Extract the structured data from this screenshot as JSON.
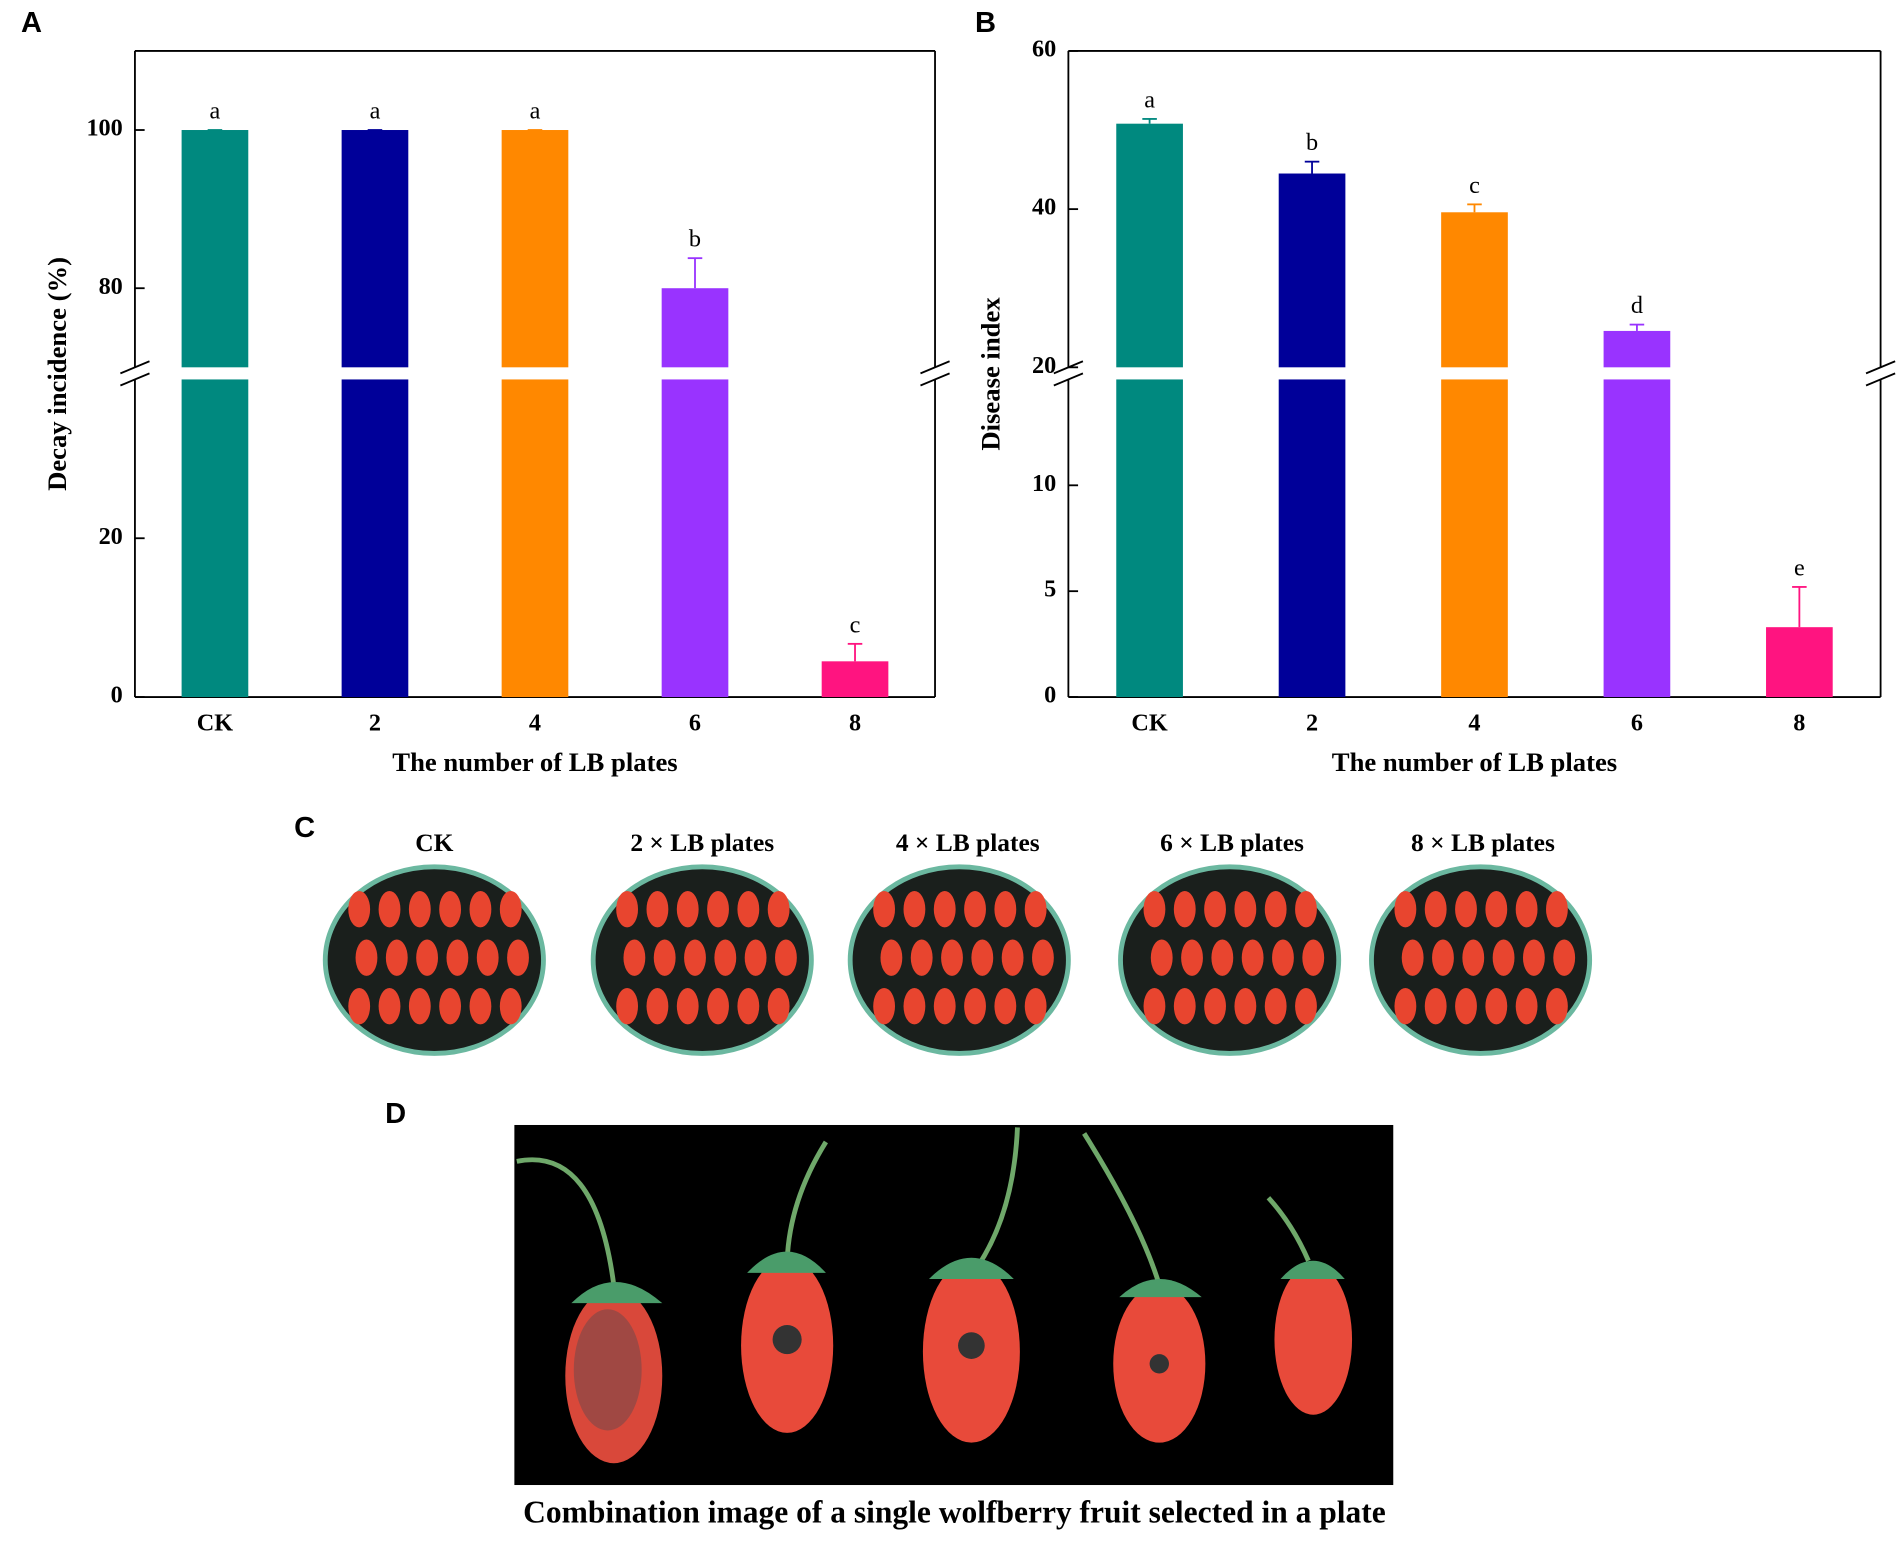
{
  "chart_data": [
    {
      "type": "bar",
      "panel_label": "A",
      "y_label": "Decay incidence (%)",
      "x_label": "The number of LB plates",
      "categories": [
        "CK",
        "2",
        "4",
        "6",
        "8"
      ],
      "values": [
        100,
        100,
        100,
        80,
        4.5
      ],
      "errors": [
        0,
        0,
        0,
        3.8,
        2.2
      ],
      "annotations": [
        "a",
        "a",
        "a",
        "b",
        "c"
      ],
      "colors": [
        "#00897f",
        "#000099",
        "#ff8800",
        "#9933ff",
        "#ff1480"
      ],
      "axis_break": true,
      "ylim": [
        0,
        40
      ],
      "yticks": [
        0,
        20
      ],
      "ylim_upper": [
        70,
        110
      ],
      "yticks_upper": [
        80,
        100
      ]
    },
    {
      "type": "bar",
      "panel_label": "B",
      "y_label": "Disease index",
      "x_label": "The number of LB plates",
      "categories": [
        "CK",
        "2",
        "4",
        "6",
        "8"
      ],
      "values": [
        50.8,
        44.5,
        39.6,
        24.6,
        3.3
      ],
      "errors": [
        0.6,
        1.5,
        1.0,
        0.8,
        1.9
      ],
      "annotations": [
        "a",
        "b",
        "c",
        "d",
        "e"
      ],
      "colors": [
        "#00897f",
        "#000099",
        "#ff8800",
        "#9933ff",
        "#ff1480"
      ],
      "axis_break": true,
      "ylim": [
        0,
        15
      ],
      "yticks": [
        0,
        5,
        10
      ],
      "ylim_upper": [
        20,
        60
      ],
      "yticks_upper": [
        20,
        40,
        60
      ]
    }
  ],
  "panel_c": {
    "label": "C",
    "plates": [
      "CK",
      "2 × LB plates",
      "4 × LB plates",
      "6 × LB plates",
      "8 × LB plates"
    ]
  },
  "panel_d": {
    "label": "D",
    "caption": "Combination image of a single wolfberry fruit selected in a plate"
  }
}
